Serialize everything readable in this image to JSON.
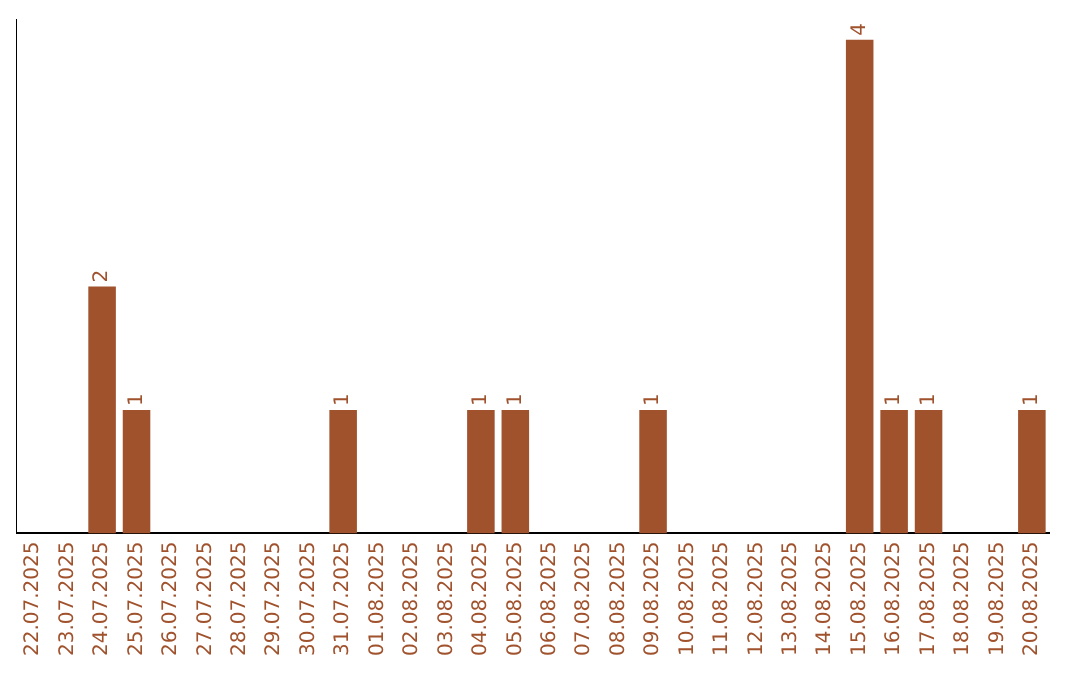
{
  "chart_data": {
    "type": "bar",
    "categories": [
      "22.07.2025",
      "23.07.2025",
      "24.07.2025",
      "25.07.2025",
      "26.07.2025",
      "27.07.2025",
      "28.07.2025",
      "29.07.2025",
      "30.07.2025",
      "31.07.2025",
      "01.08.2025",
      "02.08.2025",
      "03.08.2025",
      "04.08.2025",
      "05.08.2025",
      "06.08.2025",
      "07.08.2025",
      "08.08.2025",
      "09.08.2025",
      "10.08.2025",
      "11.08.2025",
      "12.08.2025",
      "13.08.2025",
      "14.08.2025",
      "15.08.2025",
      "16.08.2025",
      "17.08.2025",
      "18.08.2025",
      "19.08.2025",
      "20.08.2025"
    ],
    "values": [
      0,
      0,
      2,
      1,
      0,
      0,
      0,
      0,
      0,
      1,
      0,
      0,
      0,
      1,
      1,
      0,
      0,
      0,
      1,
      0,
      0,
      0,
      0,
      0,
      4,
      1,
      1,
      0,
      0,
      1
    ],
    "value_labels": [
      null,
      null,
      "2",
      "1",
      null,
      null,
      null,
      null,
      null,
      "1",
      null,
      null,
      null,
      "1",
      "1",
      null,
      null,
      null,
      "1",
      null,
      null,
      null,
      null,
      null,
      "4",
      "1",
      "1",
      null,
      null,
      "1"
    ],
    "color": "#a0522d",
    "ylim": [
      0,
      4.16
    ],
    "grid": false,
    "legend": false,
    "tick_labels": "x"
  }
}
